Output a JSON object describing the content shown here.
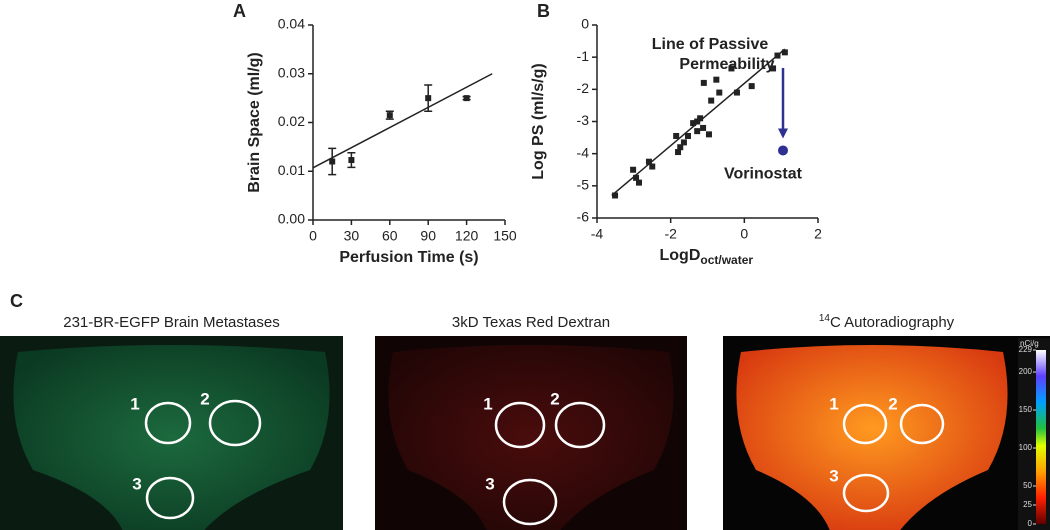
{
  "chart_data": [
    {
      "type": "scatter",
      "panel_label": "A",
      "ylabel": "Brain Space (ml/g)",
      "xlabel": "Perfusion Time (s)",
      "x": [
        15,
        30,
        60,
        90,
        120
      ],
      "values": [
        0.012,
        0.0123,
        0.0215,
        0.025,
        0.025
      ],
      "errors": [
        0.0027,
        0.0015,
        0.0008,
        0.0027,
        0.0003
      ],
      "color": "#222222",
      "fit": {
        "x": [
          0,
          140
        ],
        "y": [
          0.0107,
          0.03
        ]
      },
      "xlim": [
        0,
        150
      ],
      "xticks": [
        0,
        30,
        60,
        90,
        120,
        150
      ],
      "ylim": [
        0,
        0.04
      ],
      "yticks": [
        {
          "value": 0,
          "label": "0.00"
        },
        {
          "value": 0.01,
          "label": "0.01"
        },
        {
          "value": 0.02,
          "label": "0.02"
        },
        {
          "value": 0.03,
          "label": "0.03"
        },
        {
          "value": 0.04,
          "label": "0.04"
        }
      ]
    },
    {
      "type": "scatter",
      "panel_label": "B",
      "ylabel": "Log PS (ml/s/g)",
      "xlabel": "LogD",
      "xlabel_subscript": "oct/water",
      "annotation": [
        "Line of Passive",
        "Permeability"
      ],
      "x": [
        -3.51,
        -3.02,
        -2.94,
        -2.86,
        -2.59,
        -2.5,
        -1.85,
        -1.74,
        -1.64,
        -1.8,
        -1.53,
        -1.39,
        -1.28,
        -1.2,
        -1.12,
        -1.28,
        -0.96,
        -1.1,
        -0.9,
        -0.76,
        -0.68,
        -0.35,
        -0.2,
        0.2,
        0.78,
        0.9,
        1.1
      ],
      "values": [
        -5.3,
        -4.5,
        -4.75,
        -4.9,
        -4.25,
        -4.4,
        -3.45,
        -3.8,
        -3.65,
        -3.95,
        -3.45,
        -3.05,
        -3.0,
        -2.9,
        -3.2,
        -3.3,
        -3.4,
        -1.8,
        -2.35,
        -1.7,
        -2.1,
        -1.35,
        -2.1,
        -1.9,
        -1.35,
        -0.95,
        -0.85
      ],
      "color": "#222222",
      "highlight": {
        "name": "Vorinostat",
        "x": 1.05,
        "y": -3.9,
        "color": "#2e3192"
      },
      "fit": {
        "x": [
          -3.6,
          1.1
        ],
        "y": [
          -5.3,
          -0.75
        ]
      },
      "xlim": [
        -4,
        2
      ],
      "xticks": [
        -4,
        -2,
        0,
        2
      ],
      "ylim": [
        -6,
        0
      ],
      "yticks": [
        0,
        -1,
        -2,
        -3,
        -4,
        -5,
        -6
      ]
    }
  ],
  "panel_c": {
    "label": "C",
    "panels": [
      {
        "title": "231-BR-EGFP Brain Metastases",
        "circles": [
          "1",
          "2",
          "3"
        ]
      },
      {
        "title": "3kD Texas Red Dextran",
        "circles": [
          "1",
          "2",
          "3"
        ]
      },
      {
        "title_sup": "14",
        "title": "C Autoradiography",
        "circles": [
          "1",
          "2",
          "3"
        ]
      }
    ],
    "colorbar": {
      "unit": "nCi/g",
      "lim": [
        0,
        229
      ],
      "ticks": [
        229,
        200,
        150,
        100,
        50,
        25,
        0
      ]
    }
  }
}
